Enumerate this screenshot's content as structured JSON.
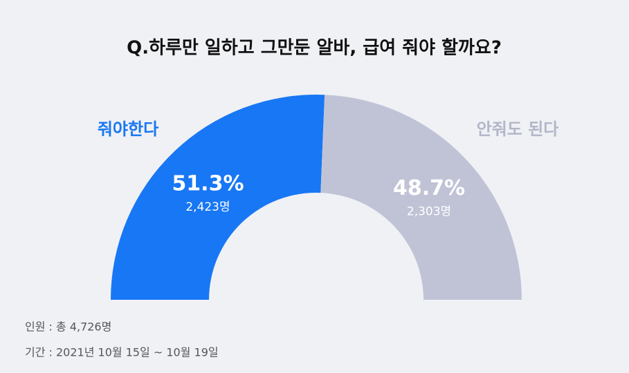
{
  "chart_data": {
    "type": "pie",
    "title": "Q.하루만 일하고 그만둔 알바, 급여 줘야 할까요?",
    "categories": [
      "줘야한다",
      "안줘도 된다"
    ],
    "values": [
      51.3,
      48.7
    ],
    "value_labels": [
      "51.3%",
      "48.7%"
    ],
    "counts": [
      2423,
      2303
    ],
    "count_labels": [
      "2,423명",
      "2,303명"
    ],
    "colors": [
      "#1877f5",
      "#c0c3d6"
    ],
    "notes": [
      "인원 : 총 4,726명",
      "기간 : 2021년 10월 15일 ~ 10월 19일"
    ]
  }
}
